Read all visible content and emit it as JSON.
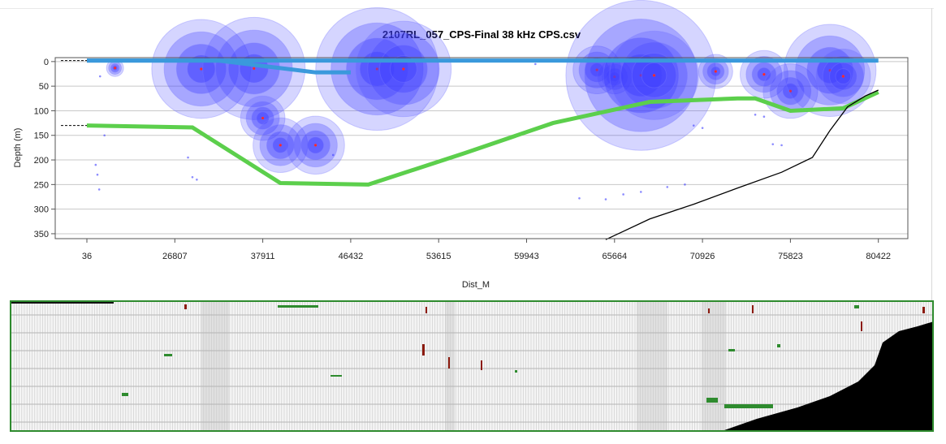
{
  "chart_data": [
    {
      "type": "scatter",
      "title": "2107RL_057_CPS-Final 38 kHz CPS.csv",
      "xlabel": "Dist_M",
      "ylabel": "Depth (m)",
      "x_ticks": [
        "36",
        "26807",
        "37911",
        "46432",
        "53615",
        "59943",
        "65664",
        "70926",
        "75823",
        "80422"
      ],
      "y_ticks": [
        0,
        50,
        100,
        150,
        200,
        250,
        300,
        350
      ],
      "ylim": [
        360,
        -8
      ],
      "grid": "horizontal",
      "colors": {
        "surface_line": "#3a99dc",
        "bottom_line": "#5ccf4c",
        "seabed_line": "#000000",
        "bubbles": "#3f3fff",
        "center_marks": "#ff2a2a",
        "grid": "#c8c8c8"
      },
      "series": [
        {
          "values_kind": "tick_index_vs_depth",
          "x": [
            0,
            0.5,
            1.7,
            1.75,
            1.79,
            2.6,
            3.3,
            3.7,
            7.3,
            7.9,
            8.7,
            9
          ],
          "y": [
            -2,
            -2,
            -2,
            -2,
            -2,
            -2,
            -2,
            -2,
            -2,
            -2,
            -2,
            -2
          ]
        },
        {
          "x": [
            0,
            0.5,
            0.6,
            1.3,
            1.5,
            2.6,
            3.0
          ],
          "y": [
            -2,
            -2,
            -2,
            -2,
            -2,
            22,
            22
          ]
        },
        {
          "x": [
            0,
            1.2,
            2.2,
            3.2,
            4.3,
            5.3,
            6.4,
            7.4,
            7.6,
            8.0,
            8.6,
            9.0
          ],
          "y": [
            130,
            134,
            247,
            250,
            186,
            125,
            82,
            75,
            75,
            100,
            95,
            62
          ]
        }
      ],
      "bubbles": [
        {
          "x": 0.32,
          "y": 13,
          "r": 5
        },
        {
          "x": 1.3,
          "y": 15,
          "r": 29
        },
        {
          "x": 1.9,
          "y": 14,
          "r": 30
        },
        {
          "x": 2.0,
          "y": 115,
          "r": 13
        },
        {
          "x": 2.2,
          "y": 170,
          "r": 16
        },
        {
          "x": 2.6,
          "y": 170,
          "r": 17
        },
        {
          "x": 3.3,
          "y": 15,
          "r": 36
        },
        {
          "x": 3.6,
          "y": 15,
          "r": 28
        },
        {
          "x": 5.8,
          "y": 17,
          "r": 14
        },
        {
          "x": 6.0,
          "y": 31,
          "r": 10
        },
        {
          "x": 6.3,
          "y": 28,
          "r": 44
        },
        {
          "x": 6.45,
          "y": 28,
          "r": 26
        },
        {
          "x": 7.15,
          "y": 20,
          "r": 10
        },
        {
          "x": 7.7,
          "y": 26,
          "r": 14
        },
        {
          "x": 8.0,
          "y": 60,
          "r": 16
        },
        {
          "x": 8.45,
          "y": 18,
          "r": 27
        },
        {
          "x": 8.6,
          "y": 30,
          "r": 16
        }
      ],
      "seabed": {
        "x": [
          5.9,
          6.4,
          6.9,
          7.4,
          7.9,
          8.25,
          8.45,
          8.65,
          8.85,
          9.0
        ],
        "y": [
          362,
          320,
          290,
          257,
          225,
          195,
          140,
          92,
          70,
          58
        ]
      }
    },
    {
      "type": "heatmap",
      "colors": {
        "background": "#f4f4f4",
        "bands": "#e0e0e0",
        "gridlines": "#b5b5b5",
        "bottom": "#000000",
        "green_specks": "#2e8b2e",
        "red_specks": "#8b1a0e",
        "border": "#2e8b2e"
      }
    }
  ]
}
